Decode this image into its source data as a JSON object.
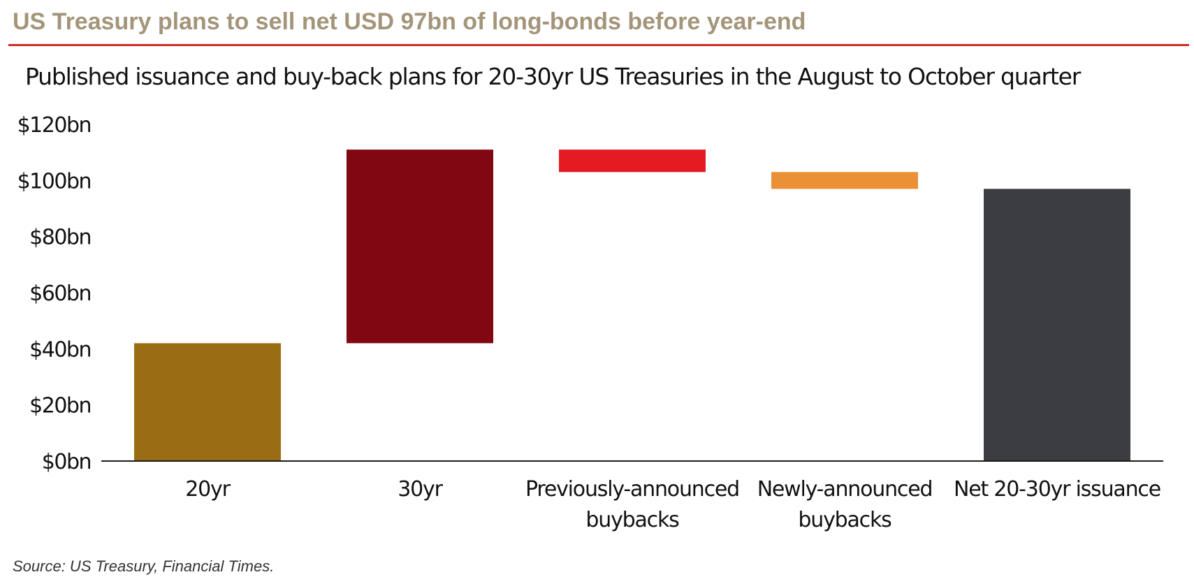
{
  "header": {
    "headline": "US Treasury plans to sell net USD 97bn of long-bonds before year-end",
    "accent_color": "#cc2b27"
  },
  "chart_data": {
    "type": "bar",
    "subtype": "waterfall",
    "title": "Published issuance and buy-back plans for 20-30yr US Treasuries in the August to October quarter",
    "xlabel": "",
    "ylabel": "",
    "ylim": [
      0,
      120
    ],
    "y_ticks": [
      {
        "value": 0,
        "label": "$0bn"
      },
      {
        "value": 20,
        "label": "$20bn"
      },
      {
        "value": 40,
        "label": "$40bn"
      },
      {
        "value": 60,
        "label": "$60bn"
      },
      {
        "value": 80,
        "label": "$80bn"
      },
      {
        "value": 100,
        "label": "$100bn"
      },
      {
        "value": 120,
        "label": "$120bn"
      }
    ],
    "grid": false,
    "legend": "none",
    "categories": [
      [
        "20yr"
      ],
      [
        "30yr"
      ],
      [
        "Previously-announced",
        "buybacks"
      ],
      [
        "Newly-announced",
        "buybacks"
      ],
      [
        "Net 20-30yr issuance"
      ]
    ],
    "bars": [
      {
        "bottom": 0,
        "top": 42,
        "color": "#9a6d15"
      },
      {
        "bottom": 42,
        "top": 111,
        "color": "#810812"
      },
      {
        "bottom": 103,
        "top": 111,
        "color": "#e41b23"
      },
      {
        "bottom": 97,
        "top": 103,
        "color": "#eb9036"
      },
      {
        "bottom": 0,
        "top": 97,
        "color": "#3b3d42"
      }
    ]
  },
  "footer": {
    "source": "Source: US Treasury, Financial Times."
  }
}
